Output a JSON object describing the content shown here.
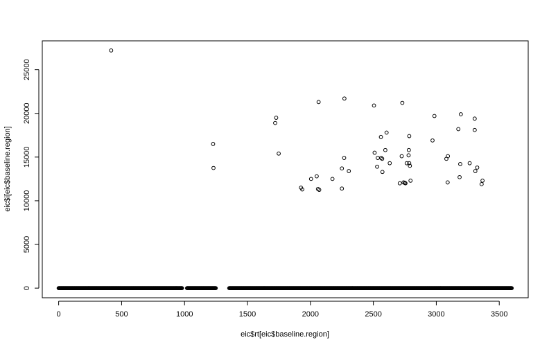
{
  "chart_data": {
    "type": "scatter",
    "title": "",
    "xlabel": "eic$rt[eic$baseline.region]",
    "ylabel": "eic$i[eic$baseline.region]",
    "xlim": [
      -130,
      3730
    ],
    "ylim": [
      -1100,
      28300
    ],
    "xticks": [
      0,
      500,
      1000,
      1500,
      2000,
      2500,
      3000,
      3500
    ],
    "yticks": [
      0,
      5000,
      10000,
      15000,
      20000,
      25000
    ],
    "grid": false,
    "legend": "none",
    "marker": "open-circle",
    "baseline_segments": [
      [
        0,
        980
      ],
      [
        1020,
        1250
      ],
      [
        1355,
        3600
      ]
    ],
    "baseline_value": 0,
    "series": [
      {
        "points": [
          [
            417,
            27200
          ],
          [
            1227,
            16500
          ],
          [
            1230,
            13750
          ],
          [
            1720,
            18900
          ],
          [
            1728,
            19500
          ],
          [
            1748,
            15400
          ],
          [
            1925,
            11500
          ],
          [
            1935,
            11300
          ],
          [
            2005,
            12500
          ],
          [
            2050,
            12800
          ],
          [
            2060,
            11350
          ],
          [
            2070,
            11250
          ],
          [
            2065,
            21300
          ],
          [
            2175,
            12500
          ],
          [
            2250,
            13700
          ],
          [
            2250,
            11400
          ],
          [
            2268,
            14900
          ],
          [
            2270,
            21700
          ],
          [
            2305,
            13400
          ],
          [
            2505,
            20900
          ],
          [
            2510,
            15500
          ],
          [
            2530,
            13900
          ],
          [
            2535,
            14900
          ],
          [
            2560,
            17300
          ],
          [
            2562,
            14900
          ],
          [
            2570,
            14800
          ],
          [
            2572,
            13300
          ],
          [
            2595,
            15800
          ],
          [
            2605,
            17800
          ],
          [
            2630,
            14300
          ],
          [
            2710,
            12000
          ],
          [
            2725,
            15100
          ],
          [
            2730,
            21200
          ],
          [
            2740,
            12100
          ],
          [
            2750,
            12050
          ],
          [
            2755,
            12000
          ],
          [
            2765,
            14300
          ],
          [
            2780,
            15200
          ],
          [
            2782,
            15800
          ],
          [
            2785,
            17400
          ],
          [
            2785,
            14300
          ],
          [
            2790,
            14000
          ],
          [
            2795,
            12300
          ],
          [
            2970,
            16900
          ],
          [
            2985,
            19700
          ],
          [
            3080,
            14800
          ],
          [
            3092,
            15100
          ],
          [
            3090,
            12100
          ],
          [
            3175,
            18200
          ],
          [
            3185,
            12700
          ],
          [
            3190,
            14200
          ],
          [
            3195,
            19900
          ],
          [
            3265,
            14300
          ],
          [
            3305,
            19400
          ],
          [
            3305,
            18100
          ],
          [
            3310,
            13400
          ],
          [
            3325,
            13800
          ],
          [
            3360,
            11900
          ],
          [
            3367,
            12300
          ]
        ]
      }
    ]
  }
}
